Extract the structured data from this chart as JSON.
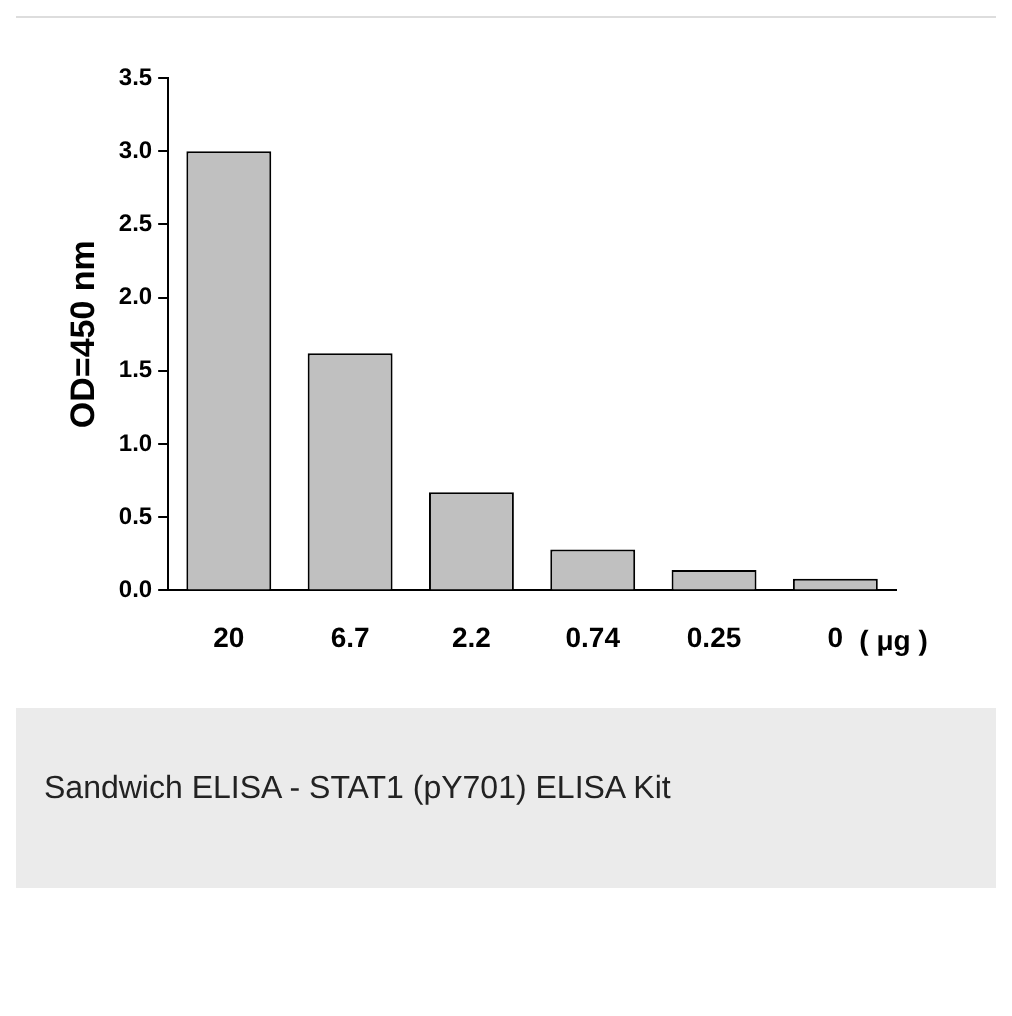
{
  "chart_data": {
    "type": "bar",
    "ylabel": "OD=450 nm",
    "xlabel": "( μg )",
    "categories": [
      "20",
      "6.7",
      "2.2",
      "0.74",
      "0.25",
      "0"
    ],
    "values": [
      3.0,
      1.62,
      0.67,
      0.28,
      0.14,
      0.08
    ],
    "color": "#c0c0c0",
    "ylim": [
      0,
      3.5
    ],
    "yticks": [
      {
        "value": 0,
        "label": "0.0"
      },
      0.5,
      {
        "value": 1,
        "label": "1.0"
      },
      1.5,
      {
        "value": 2,
        "label": "2.0"
      },
      2.5,
      {
        "value": 3,
        "label": "3.0"
      },
      3.5
    ],
    "grid": false,
    "legend": false,
    "annotations": [
      "Sandwich ELISA - STAT1 (pY701) ELISA Kit"
    ]
  }
}
